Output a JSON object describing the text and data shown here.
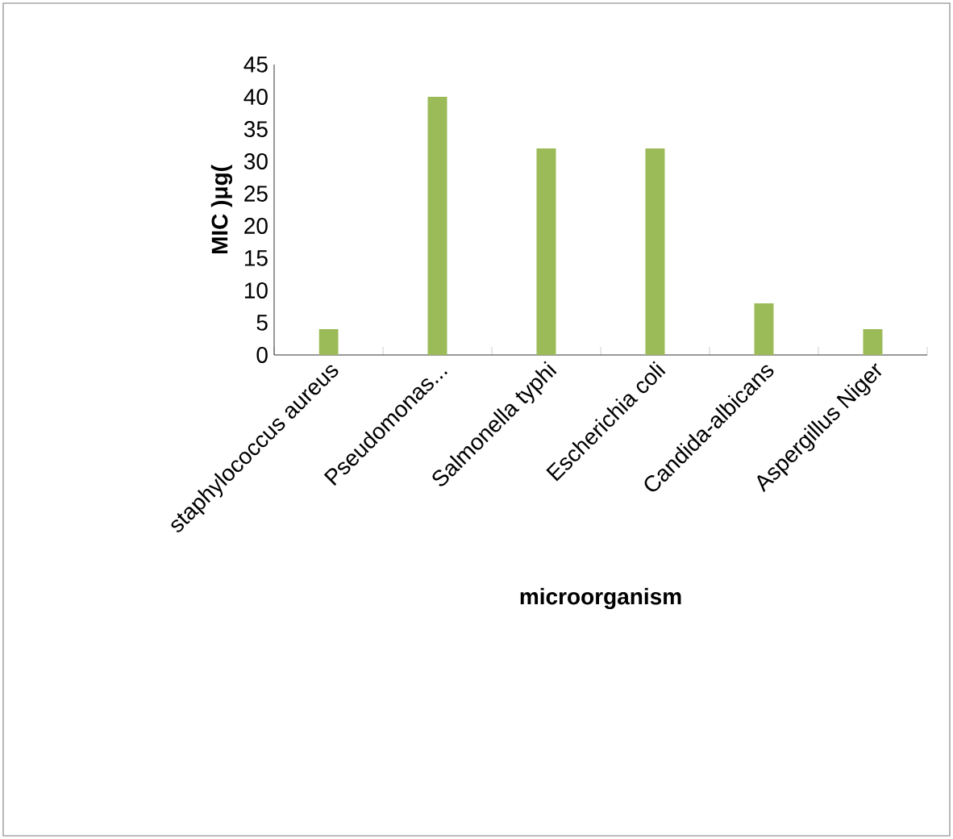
{
  "chart_data": {
    "type": "bar",
    "xlabel": "microorganism",
    "ylabel": "MIC )μg(",
    "categories": [
      "staphylococcus aureus",
      "Pseudomonas...",
      "Salmonella typhi",
      "Escherichia coli",
      "Candida-albicans",
      "Aspergillus Niger"
    ],
    "values": [
      4,
      40,
      32,
      32,
      8,
      4
    ],
    "color": "#9bbb59",
    "ylim": [
      0,
      45
    ],
    "yticks": [
      0,
      5,
      10,
      15,
      20,
      25,
      30,
      35,
      40,
      45
    ]
  }
}
